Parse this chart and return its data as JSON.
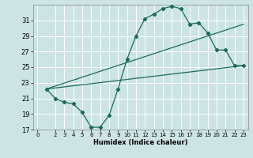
{
  "xlabel": "Humidex (Indice chaleur)",
  "ylabel": "",
  "background_color": "#cde4e4",
  "grid_color": "#ffffff",
  "line_color": "#1a6b5a",
  "xlim": [
    -0.5,
    23.5
  ],
  "ylim": [
    17,
    33
  ],
  "yticks": [
    17,
    19,
    21,
    23,
    25,
    27,
    29,
    31
  ],
  "xticks": [
    0,
    2,
    3,
    4,
    5,
    6,
    7,
    8,
    9,
    10,
    11,
    12,
    13,
    14,
    15,
    16,
    17,
    18,
    19,
    20,
    21,
    22,
    23
  ],
  "line1_x": [
    1,
    2,
    3,
    4,
    5,
    6,
    7,
    8,
    9,
    10,
    11,
    12,
    13,
    14,
    15,
    16,
    17,
    18,
    19,
    20,
    21,
    22,
    23
  ],
  "line1_y": [
    22.2,
    21.0,
    20.5,
    20.3,
    19.2,
    17.3,
    17.3,
    18.8,
    22.2,
    26.0,
    29.0,
    31.2,
    31.8,
    32.5,
    32.8,
    32.5,
    30.5,
    30.7,
    29.4,
    27.2,
    27.2,
    25.2,
    25.2
  ],
  "line2_x": [
    1,
    23
  ],
  "line2_y": [
    22.2,
    25.2
  ],
  "line3_x": [
    1,
    23
  ],
  "line3_y": [
    22.2,
    30.5
  ]
}
